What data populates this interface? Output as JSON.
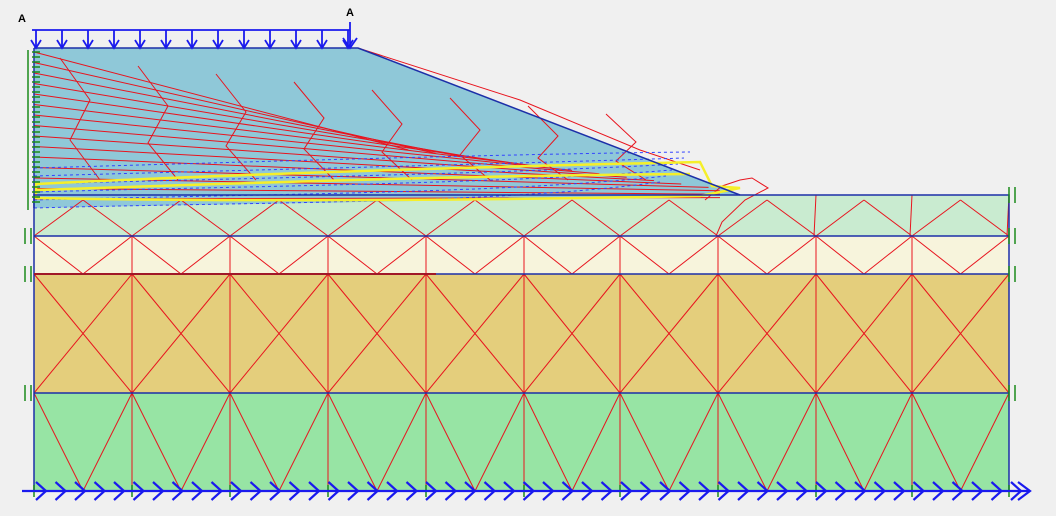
{
  "load_labels": [
    "A",
    "A"
  ],
  "colors": {
    "background": "#f0f0f0",
    "embankment": "#8fc8d8",
    "layer_top": "#c9ebd0",
    "layer_2": "#f7f4dc",
    "layer_3": "#e4ce7c",
    "layer_4": "#97e4a4",
    "mesh": "#e8141e",
    "outline": "#1c2fa8",
    "load": "#1a1aee",
    "slip_zone": "#f5ef2a",
    "dashed": "#3344ff",
    "fixity": "#1a8a1a",
    "separator": "#a01828"
  },
  "icons": {
    "distributed_load": "down-arrow-icon",
    "base_fixity": "right-arrow-icon",
    "side_fixity": "roller-icon"
  }
}
